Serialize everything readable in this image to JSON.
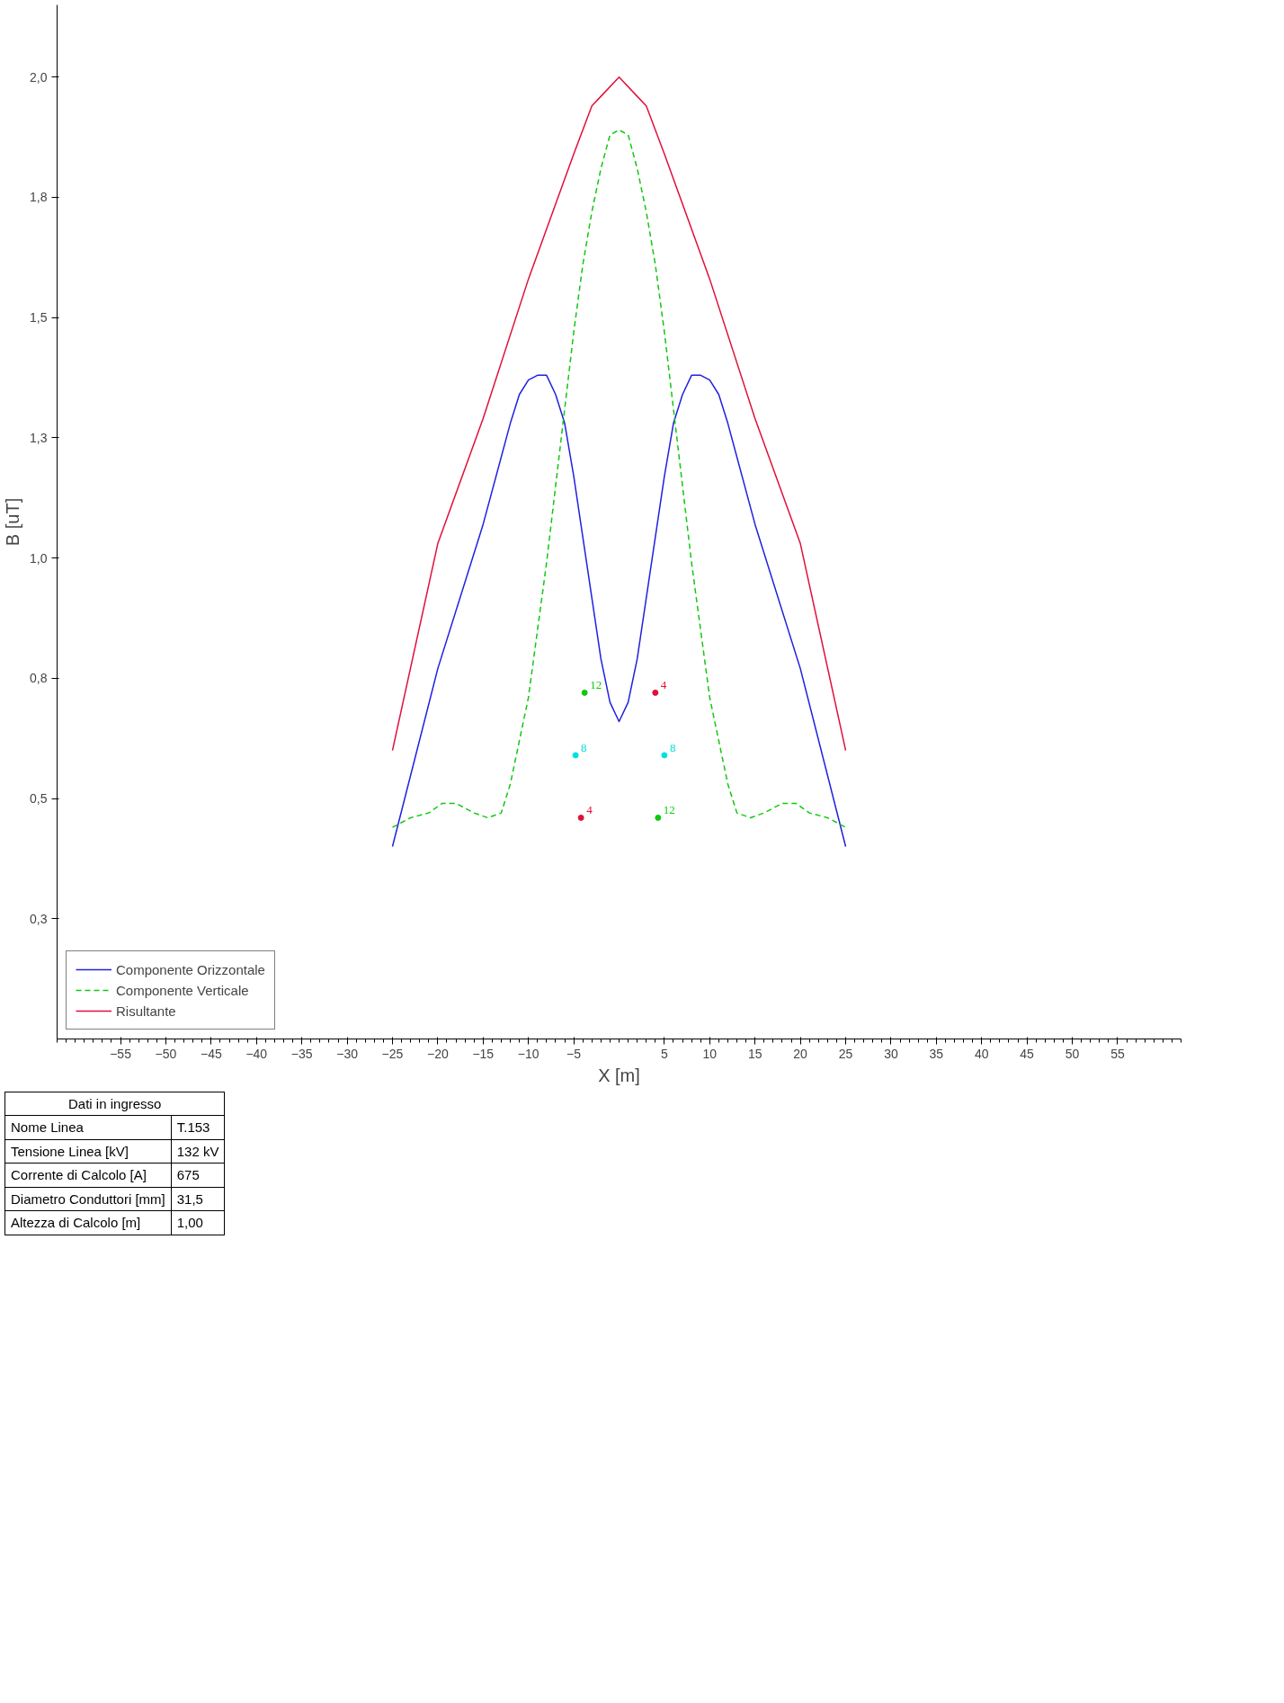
{
  "chart_data": {
    "type": "line",
    "xlabel": "X [m]",
    "ylabel": "B [uT]",
    "xlim": [
      -62,
      62
    ],
    "ylim": [
      0,
      2.15
    ],
    "xticks": [
      -55,
      -50,
      -45,
      -40,
      -35,
      -30,
      -25,
      -20,
      -15,
      -10,
      -5,
      5,
      10,
      15,
      20,
      25,
      30,
      35,
      40,
      45,
      50,
      55
    ],
    "yticks": [
      {
        "value": 0.25,
        "label": "0,3"
      },
      {
        "value": 0.5,
        "label": "0,5"
      },
      {
        "value": 0.75,
        "label": "0,8"
      },
      {
        "value": 1.0,
        "label": "1,0"
      },
      {
        "value": 1.25,
        "label": "1,3"
      },
      {
        "value": 1.5,
        "label": "1,5"
      },
      {
        "value": 1.75,
        "label": "1,8"
      },
      {
        "value": 2.0,
        "label": "2,0"
      }
    ],
    "grid": false,
    "legend": "bottom left",
    "series": [
      {
        "name": "Componente Orizzontale",
        "color": "#2020e0",
        "line_style": "solid",
        "x": [
          -25,
          -20,
          -15,
          -12,
          -11,
          -10,
          -9,
          -8,
          -7,
          -6,
          -5,
          -2,
          -1,
          0,
          1,
          2,
          5,
          6,
          7,
          8,
          9,
          10,
          11,
          12,
          15,
          20,
          25
        ],
        "values": [
          0.4,
          0.77,
          1.07,
          1.28,
          1.34,
          1.37,
          1.38,
          1.38,
          1.34,
          1.28,
          1.17,
          0.79,
          0.7,
          0.66,
          0.7,
          0.79,
          1.17,
          1.28,
          1.34,
          1.38,
          1.38,
          1.37,
          1.34,
          1.28,
          1.07,
          0.77,
          0.4
        ]
      },
      {
        "name": "Componente Verticale",
        "color": "#10c810",
        "line_style": "dashed",
        "x": [
          -25,
          -23,
          -21,
          -19.5,
          -18,
          -16,
          -14.5,
          -13,
          -12,
          -10,
          -8,
          -6,
          -5,
          -4,
          -3,
          -2,
          -1,
          0,
          1,
          2,
          3,
          4,
          5,
          6,
          8,
          10,
          12,
          13,
          14.5,
          16,
          18,
          19.5,
          21,
          23,
          25
        ],
        "values": [
          0.44,
          0.46,
          0.47,
          0.49,
          0.49,
          0.47,
          0.46,
          0.47,
          0.53,
          0.71,
          0.99,
          1.31,
          1.47,
          1.61,
          1.72,
          1.81,
          1.88,
          1.89,
          1.88,
          1.81,
          1.72,
          1.61,
          1.47,
          1.31,
          0.99,
          0.71,
          0.53,
          0.47,
          0.46,
          0.47,
          0.49,
          0.49,
          0.47,
          0.46,
          0.44
        ]
      },
      {
        "name": "Risultante",
        "color": "#e0103a",
        "line_style": "solid",
        "x": [
          -25,
          -20,
          -15,
          -10,
          -5,
          -3,
          -2,
          0,
          2,
          3,
          5,
          10,
          15,
          20,
          25
        ],
        "values": [
          0.6,
          1.03,
          1.29,
          1.58,
          1.84,
          1.94,
          1.96,
          2.0,
          1.96,
          1.94,
          1.84,
          1.58,
          1.29,
          1.03,
          0.6
        ]
      },
      {
        "type": "scatter",
        "color": "#e0103a",
        "marker": "circle",
        "x": [
          4,
          -4.2
        ],
        "values": [
          0.72,
          0.46
        ]
      },
      {
        "type": "scatter",
        "color": "#00e0e0",
        "marker": "circle",
        "x": [
          5,
          -4.8
        ],
        "values": [
          0.59,
          0.59
        ]
      },
      {
        "type": "scatter",
        "color": "#10c810",
        "marker": "circle",
        "x": [
          4.3,
          -3.8
        ],
        "values": [
          0.46,
          0.72
        ]
      }
    ],
    "annotations": [
      {
        "text": "4",
        "x": 4,
        "y": 0.72
      },
      {
        "text": "4",
        "x": -4.2,
        "y": 0.46
      },
      {
        "text": "8",
        "x": 5,
        "y": 0.59
      },
      {
        "text": "8",
        "x": -4.8,
        "y": 0.59
      },
      {
        "text": "12",
        "x": 4.3,
        "y": 0.46
      },
      {
        "text": "12",
        "x": -3.8,
        "y": 0.72
      },
      "Dati in ingresso",
      "Nome Linea",
      "T.153",
      "Tensione Linea [kV]",
      "132 kV",
      "Corrente di Calcolo [A]",
      "675",
      "Diametro Conduttori [mm]",
      "31,5",
      "Altezza di Calcolo [m]",
      "1,00"
    ]
  }
}
